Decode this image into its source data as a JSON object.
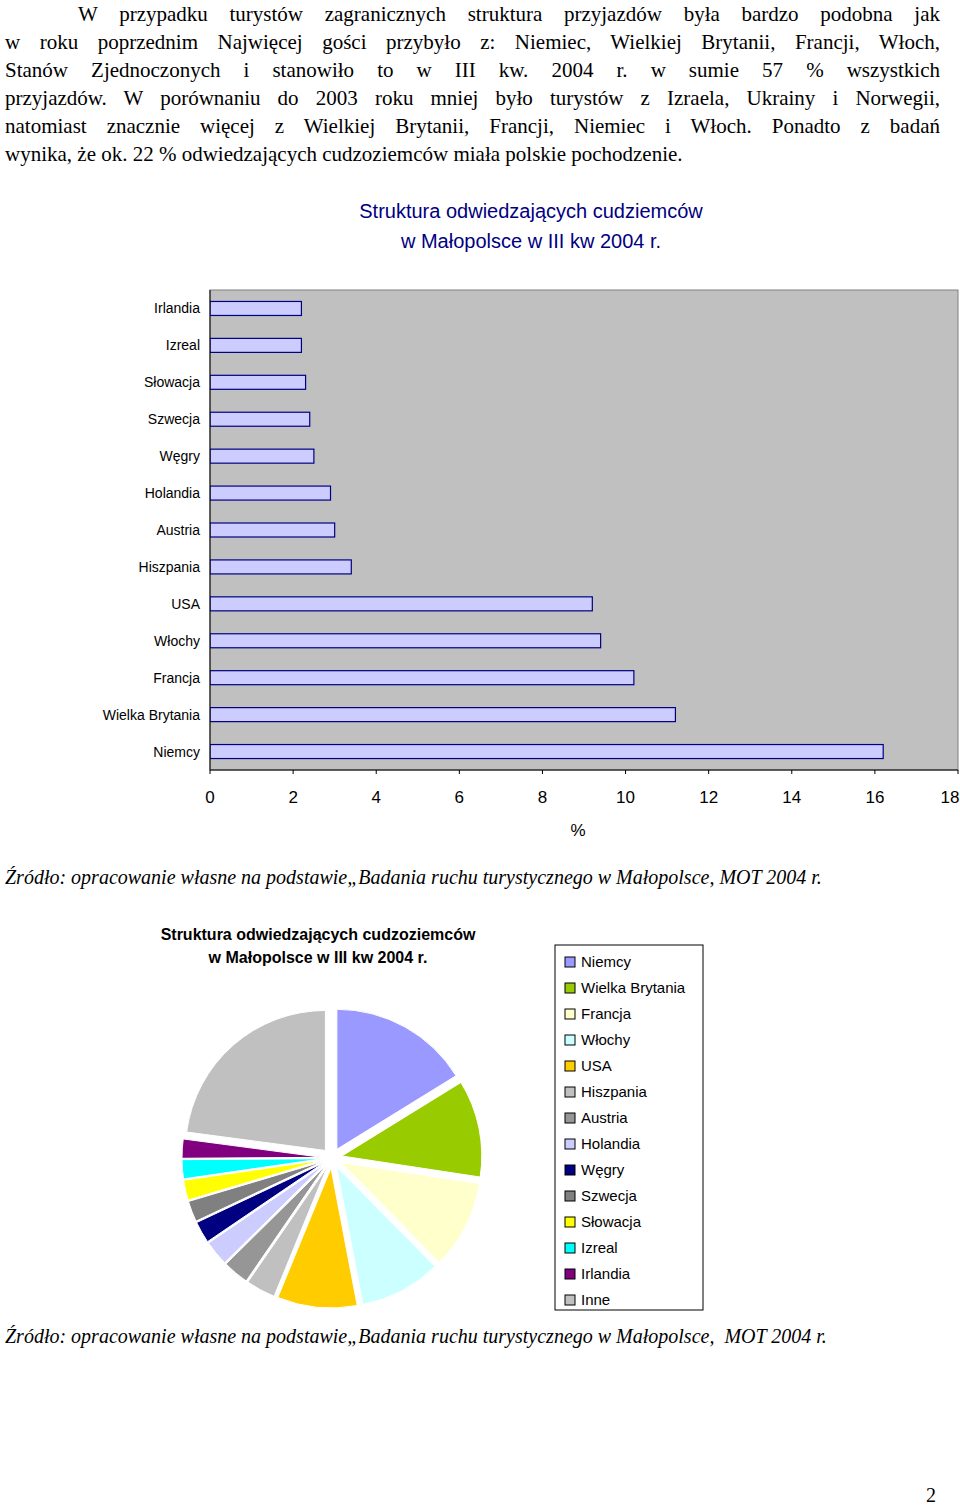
{
  "paragraph": {
    "lines": [
      "W przypadku turystów zagranicznych struktura przyjazdów była bardzo podobna jak",
      "w roku poprzednim Najwięcej gości przybyło z: Niemiec, Wielkiej Brytanii, Francji, Włoch,",
      "Stanów Zjednoczonych i stanowiło to w III kw. 2004 r. w sumie 57 % wszystkich",
      "przyjazdów. W porównaniu do 2003 roku mniej było turystów z Izraela, Ukrainy i Norwegii,",
      "natomiast znacznie więcej z Wielkiej Brytanii, Francji, Niemiec i Włoch. Ponadto z badań",
      "wynika, że ok. 22 % odwiedzających cudzoziemców miała polskie pochodzenie."
    ]
  },
  "chart_data": [
    {
      "type": "bar",
      "orientation": "horizontal",
      "title": "Struktura odwiedzających cudziemców\nw Małopolsce w III kw 2004 r.",
      "categories": [
        "Irlandia",
        "Izreal",
        "Słowacja",
        "Szwecja",
        "Węgry",
        "Holandia",
        "Austria",
        "Hiszpania",
        "USA",
        "Włochy",
        "Francja",
        "Wielka Brytania",
        "Niemcy"
      ],
      "values": [
        2.2,
        2.2,
        2.3,
        2.4,
        2.5,
        2.9,
        3.0,
        3.4,
        9.2,
        9.4,
        10.2,
        11.2,
        16.2
      ],
      "color": "#ccccff",
      "x_label": "%",
      "xlim": [
        0,
        18
      ],
      "xticks": [
        0,
        2,
        4,
        6,
        8,
        10,
        12,
        14,
        16,
        18
      ],
      "grid": false
    },
    {
      "type": "pie",
      "title": "Struktura odwiedzających cudzoziemców\nw Małopolsce w III kw 2004 r.",
      "categories": [
        "Niemcy",
        "Wielka Brytania",
        "Francja",
        "Włochy",
        "USA",
        "Hiszpania",
        "Austria",
        "Holandia",
        "Węgry",
        "Szwecja",
        "Słowacja",
        "Izreal",
        "Irlandia",
        "Inne"
      ],
      "values": [
        16.2,
        11.2,
        10.2,
        9.4,
        9.2,
        3.4,
        3.0,
        2.9,
        2.5,
        2.4,
        2.3,
        2.2,
        2.2,
        22.9
      ],
      "colors": [
        "#9999ff",
        "#99cc00",
        "#ffffcc",
        "#ccffff",
        "#ffcc00",
        "#c0c0c0",
        "#969696",
        "#ccccff",
        "#000080",
        "#808080",
        "#ffff00",
        "#00ffff",
        "#800080",
        "#c0c0c0"
      ],
      "legend": "right"
    }
  ],
  "captions": [
    "Źródło: opracowanie własne na podstawie„Badania ruchu turystycznego w Małopolsce, MOT 2004 r.",
    "Źródło: opracowanie własne na podstawie„Badania ruchu turystycznego w Małopolsce,  MOT 2004 r."
  ],
  "page_number": "2"
}
